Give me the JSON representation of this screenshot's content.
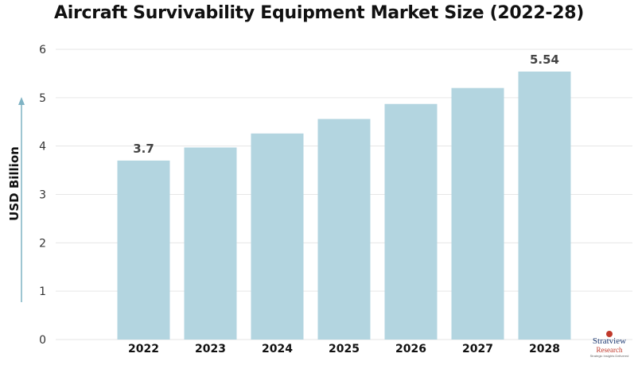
{
  "chart_data": {
    "type": "bar",
    "title": "Aircraft Survivability Equipment Market Size (2022-28)",
    "ylabel": "USD Billion",
    "xlabel": "",
    "categories": [
      "2022",
      "2023",
      "2024",
      "2025",
      "2026",
      "2027",
      "2028"
    ],
    "values": [
      3.7,
      3.97,
      4.26,
      4.56,
      4.87,
      5.2,
      5.54
    ],
    "data_labels": [
      "3.7",
      "",
      "",
      "",
      "",
      "",
      "5.54"
    ],
    "ylim": [
      0,
      6
    ],
    "yticks": [
      "0",
      "1",
      "2",
      "3",
      "4",
      "5",
      "6"
    ],
    "grid": true,
    "bar_color": "#b3d5e0",
    "axis_arrow_color": "#7fb3c4"
  },
  "logo": {
    "line1": "Stratview",
    "line2": "Research",
    "line3": "Strategic Insights Delivered"
  }
}
